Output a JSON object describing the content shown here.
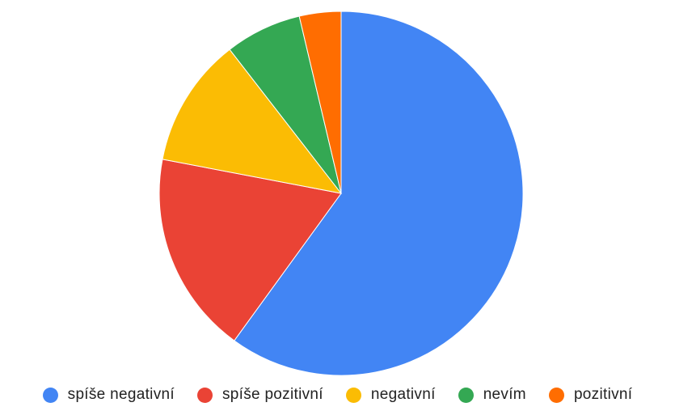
{
  "chart_data": {
    "type": "pie",
    "categories": [
      "spíše negativní",
      "spíše pozitivní",
      "negativní",
      "nevím",
      "pozitivní"
    ],
    "values": [
      60.0,
      18.0,
      11.5,
      6.8,
      3.7
    ],
    "colors": [
      "#4285f4",
      "#ea4335",
      "#fbbc04",
      "#34a853",
      "#ff6d01"
    ],
    "start_angle": "12 o'clock",
    "direction": "clockwise",
    "legend_position": "bottom"
  }
}
